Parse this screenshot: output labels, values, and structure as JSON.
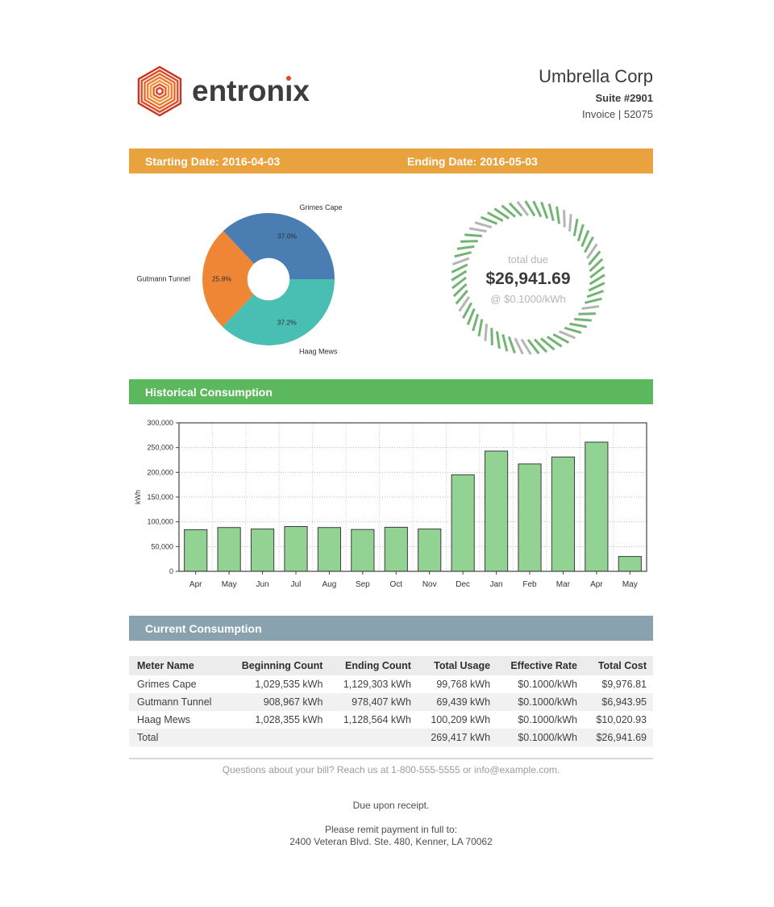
{
  "header": {
    "brand": "entronix",
    "company": "Umbrella Corp",
    "suite": "Suite #2901",
    "invoice": "Invoice | 52075"
  },
  "banners": {
    "starting_date": "Starting Date: 2016-04-03",
    "ending_date": "Ending Date: 2016-05-03",
    "historical": "Historical Consumption",
    "current": "Current Consumption"
  },
  "gauge": {
    "label_top": "total due",
    "amount": "$26,941.69",
    "rate": "@ $0.1000/kWh",
    "tick_green": "#73b475",
    "tick_gray": "#b5b5b5"
  },
  "chart_data": [
    {
      "type": "pie",
      "labels": [
        "Grimes Cape",
        "Gutmann Tunnel",
        "Haag Mews"
      ],
      "values": [
        37.0,
        25.8,
        37.2
      ],
      "value_labels": [
        "37.0%",
        "25.8%",
        "37.2%"
      ],
      "colors": [
        "#4a7db1",
        "#ee8636",
        "#48bfb2"
      ],
      "donut_hole_ratio": 0.32,
      "start_angle_deg": 0,
      "direction": "counterclockwise",
      "legend_position": "outside-labels"
    },
    {
      "type": "bar",
      "categories": [
        "Apr",
        "May",
        "Jun",
        "Jul",
        "Aug",
        "Sep",
        "Oct",
        "Nov",
        "Dec",
        "Jan",
        "Feb",
        "Mar",
        "Apr",
        "May"
      ],
      "values": [
        84000,
        88500,
        85500,
        90500,
        88500,
        84500,
        89000,
        85500,
        195000,
        243000,
        217000,
        231000,
        261000,
        30000
      ],
      "title": "Historical Consumption",
      "xlabel": "",
      "ylabel": "kWh",
      "ylim": [
        0,
        300000
      ],
      "ytick_step": 50000,
      "bar_color": "#92d394",
      "bar_edge": "#3c3c3c",
      "grid": true
    }
  ],
  "table": {
    "headers": [
      "Meter Name",
      "Beginning Count",
      "Ending Count",
      "Total Usage",
      "Effective Rate",
      "Total Cost"
    ],
    "rows": [
      [
        "Grimes Cape",
        "1,029,535 kWh",
        "1,129,303 kWh",
        "99,768 kWh",
        "$0.1000/kWh",
        "$9,976.81"
      ],
      [
        "Gutmann Tunnel",
        "908,967 kWh",
        "978,407 kWh",
        "69,439 kWh",
        "$0.1000/kWh",
        "$6,943.95"
      ],
      [
        "Haag Mews",
        "1,028,355 kWh",
        "1,128,564 kWh",
        "100,209 kWh",
        "$0.1000/kWh",
        "$10,020.93"
      ],
      [
        "Total",
        "",
        "",
        "269,417 kWh",
        "$0.1000/kWh",
        "$26,941.69"
      ]
    ]
  },
  "footer": {
    "questions": "Questions about your bill? Reach us at 1-800-555-5555 or info@example.com.",
    "due": "Due upon receipt.",
    "remit": "Please remit payment in full to:",
    "address": "2400 Veteran Blvd. Ste. 480, Kenner, LA 70062"
  }
}
